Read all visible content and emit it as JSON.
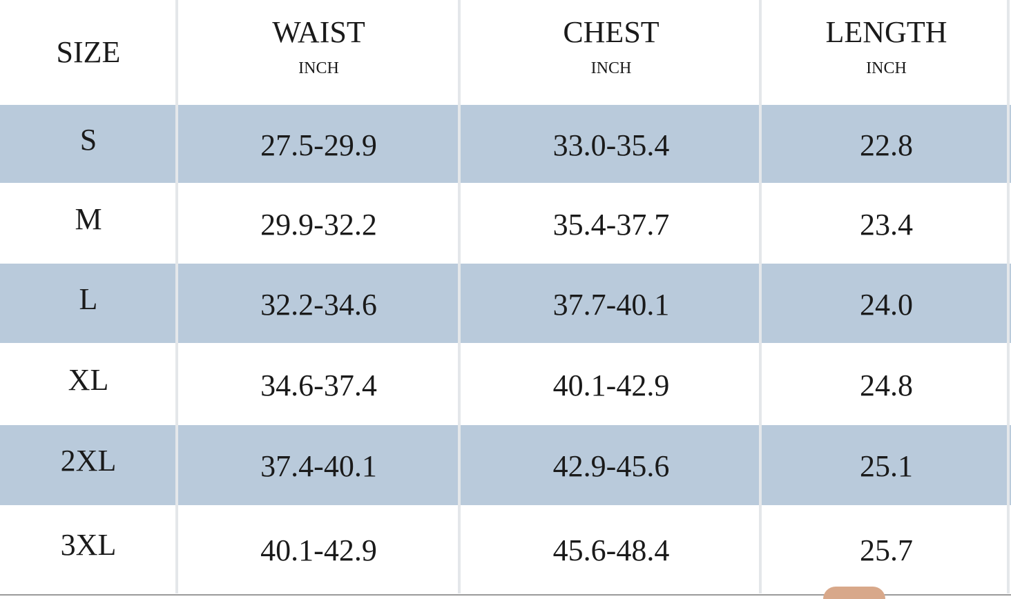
{
  "table": {
    "header": [
      {
        "title": "SIZE"
      },
      {
        "title": "WAIST",
        "unit": "INCH"
      },
      {
        "title": "CHEST",
        "unit": "INCH"
      },
      {
        "title": "LENGTH",
        "unit": "INCH"
      }
    ],
    "rows": [
      [
        "S",
        "27.5-29.9",
        "33.0-35.4",
        "22.8"
      ],
      [
        "M",
        "29.9-32.2",
        "35.4-37.7",
        "23.4"
      ],
      [
        "L",
        "32.2-34.6",
        "37.7-40.1",
        "24.0"
      ],
      [
        "XL",
        "34.6-37.4",
        "40.1-42.9",
        "24.8"
      ],
      [
        "2XL",
        "37.4-40.1",
        "42.9-45.6",
        "25.1"
      ],
      [
        "3XL",
        "40.1-42.9",
        "45.6-48.4",
        "25.7"
      ]
    ]
  }
}
